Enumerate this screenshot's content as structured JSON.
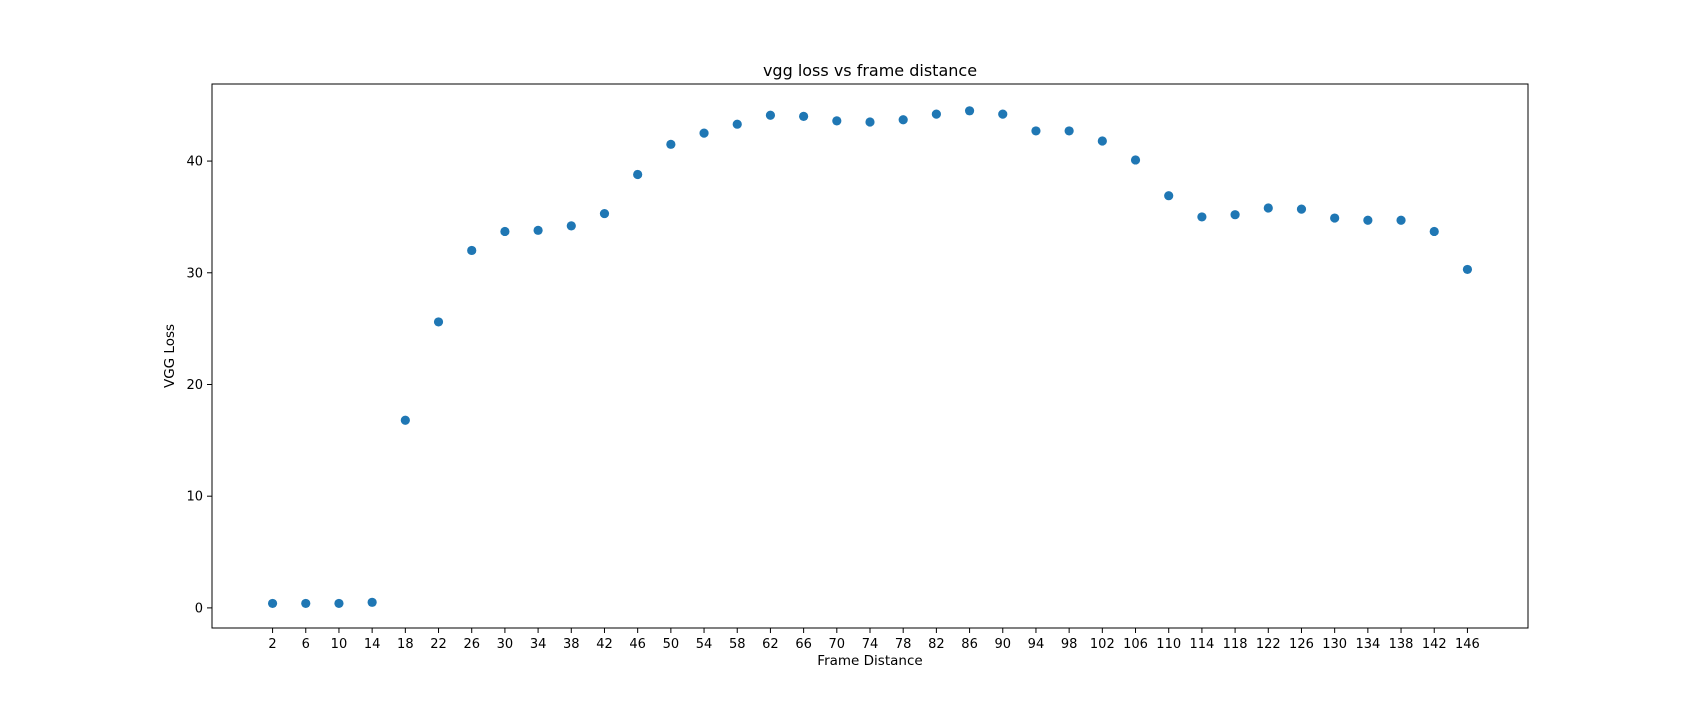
{
  "chart_data": {
    "type": "scatter",
    "title": "vgg loss vs frame distance",
    "xlabel": "Frame Distance",
    "ylabel": "VGG Loss",
    "x": [
      2,
      6,
      10,
      14,
      18,
      22,
      26,
      30,
      34,
      38,
      42,
      46,
      50,
      54,
      58,
      62,
      66,
      70,
      74,
      78,
      82,
      86,
      90,
      94,
      98,
      102,
      106,
      110,
      114,
      118,
      122,
      126,
      130,
      134,
      138,
      142,
      146
    ],
    "y": [
      0.4,
      0.4,
      0.4,
      0.5,
      16.8,
      25.6,
      32.0,
      33.7,
      33.8,
      34.2,
      35.3,
      38.8,
      41.5,
      42.5,
      43.3,
      44.1,
      44.0,
      43.6,
      43.5,
      43.7,
      44.2,
      44.5,
      44.2,
      42.7,
      42.7,
      41.8,
      40.1,
      36.9,
      35.0,
      35.2,
      35.8,
      35.7,
      34.9,
      34.7,
      34.7,
      33.7,
      30.3
    ],
    "xticks": [
      "2",
      "6",
      "10",
      "14",
      "18",
      "22",
      "26",
      "30",
      "34",
      "38",
      "42",
      "46",
      "50",
      "54",
      "58",
      "62",
      "66",
      "70",
      "74",
      "78",
      "82",
      "86",
      "90",
      "94",
      "98",
      "102",
      "106",
      "110",
      "114",
      "118",
      "122",
      "126",
      "130",
      "134",
      "138",
      "142",
      "146"
    ],
    "yticks": [
      0,
      10,
      20,
      30,
      40
    ],
    "xlim": [
      -5.3,
      153.3
    ],
    "ylim": [
      -1.8,
      46.9
    ],
    "marker_color": "#1f77b4",
    "grid": false,
    "legend": "none"
  }
}
